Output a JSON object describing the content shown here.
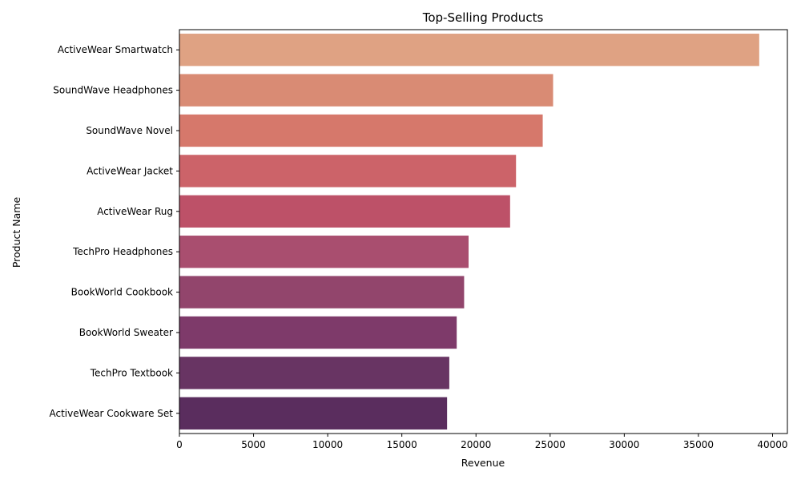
{
  "chart_data": {
    "type": "bar",
    "orientation": "horizontal",
    "title": "Top-Selling Products",
    "xlabel": "Revenue",
    "ylabel": "Product Name",
    "xlim": [
      0,
      41000
    ],
    "xticks": [
      0,
      5000,
      10000,
      15000,
      20000,
      25000,
      30000,
      35000,
      40000
    ],
    "grid": false,
    "legend": "none",
    "categories": [
      "ActiveWear Smartwatch",
      "SoundWave Headphones",
      "SoundWave Novel",
      "ActiveWear Jacket",
      "ActiveWear Rug",
      "TechPro Headphones",
      "BookWorld Cookbook",
      "BookWorld Sweater",
      "TechPro Textbook",
      "ActiveWear Cookware Set"
    ],
    "values": [
      39100,
      25200,
      24500,
      22700,
      22300,
      19500,
      19200,
      18700,
      18200,
      18050
    ],
    "colors": [
      "#dfa283",
      "#d98b74",
      "#d6786b",
      "#cc6369",
      "#bd5168",
      "#a94e6f",
      "#92456c",
      "#7e3a6a",
      "#683463",
      "#5a2d5e"
    ]
  }
}
